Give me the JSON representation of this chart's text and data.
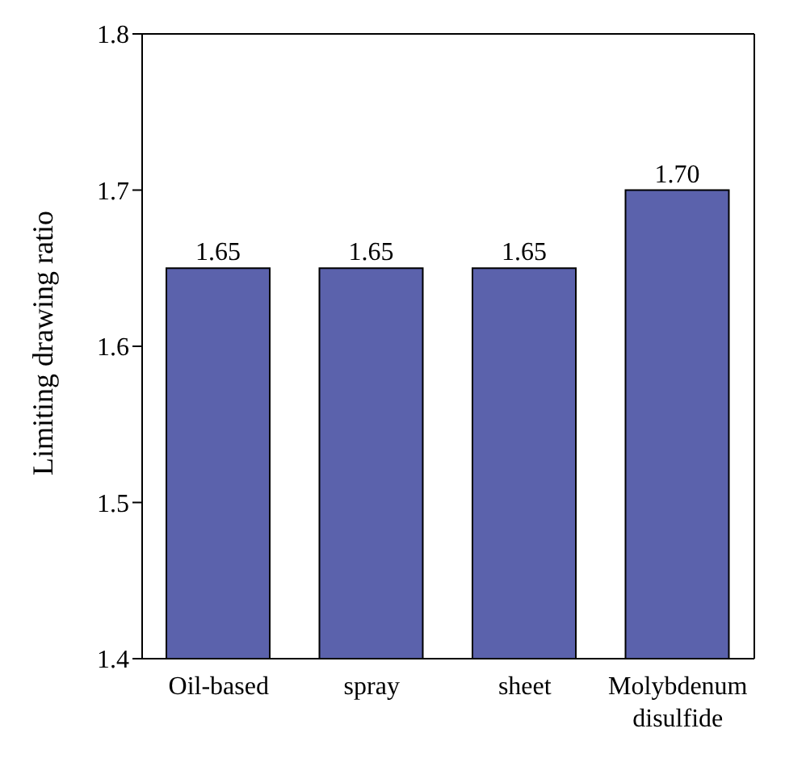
{
  "chart_data": {
    "type": "bar",
    "ylabel": "Limiting drawing ratio",
    "categories": [
      "Oil-based",
      "spray",
      "sheet",
      "Molybdenum disulfide"
    ],
    "values": [
      1.65,
      1.65,
      1.65,
      1.7
    ],
    "color": "#5b62ac",
    "ylim": [
      1.4,
      1.8
    ],
    "yticks": [
      1.4,
      1.5,
      1.6,
      1.7,
      1.8
    ],
    "grid": false,
    "value_labels": [
      "1.65",
      "1.65",
      "1.65",
      "1.70"
    ]
  }
}
